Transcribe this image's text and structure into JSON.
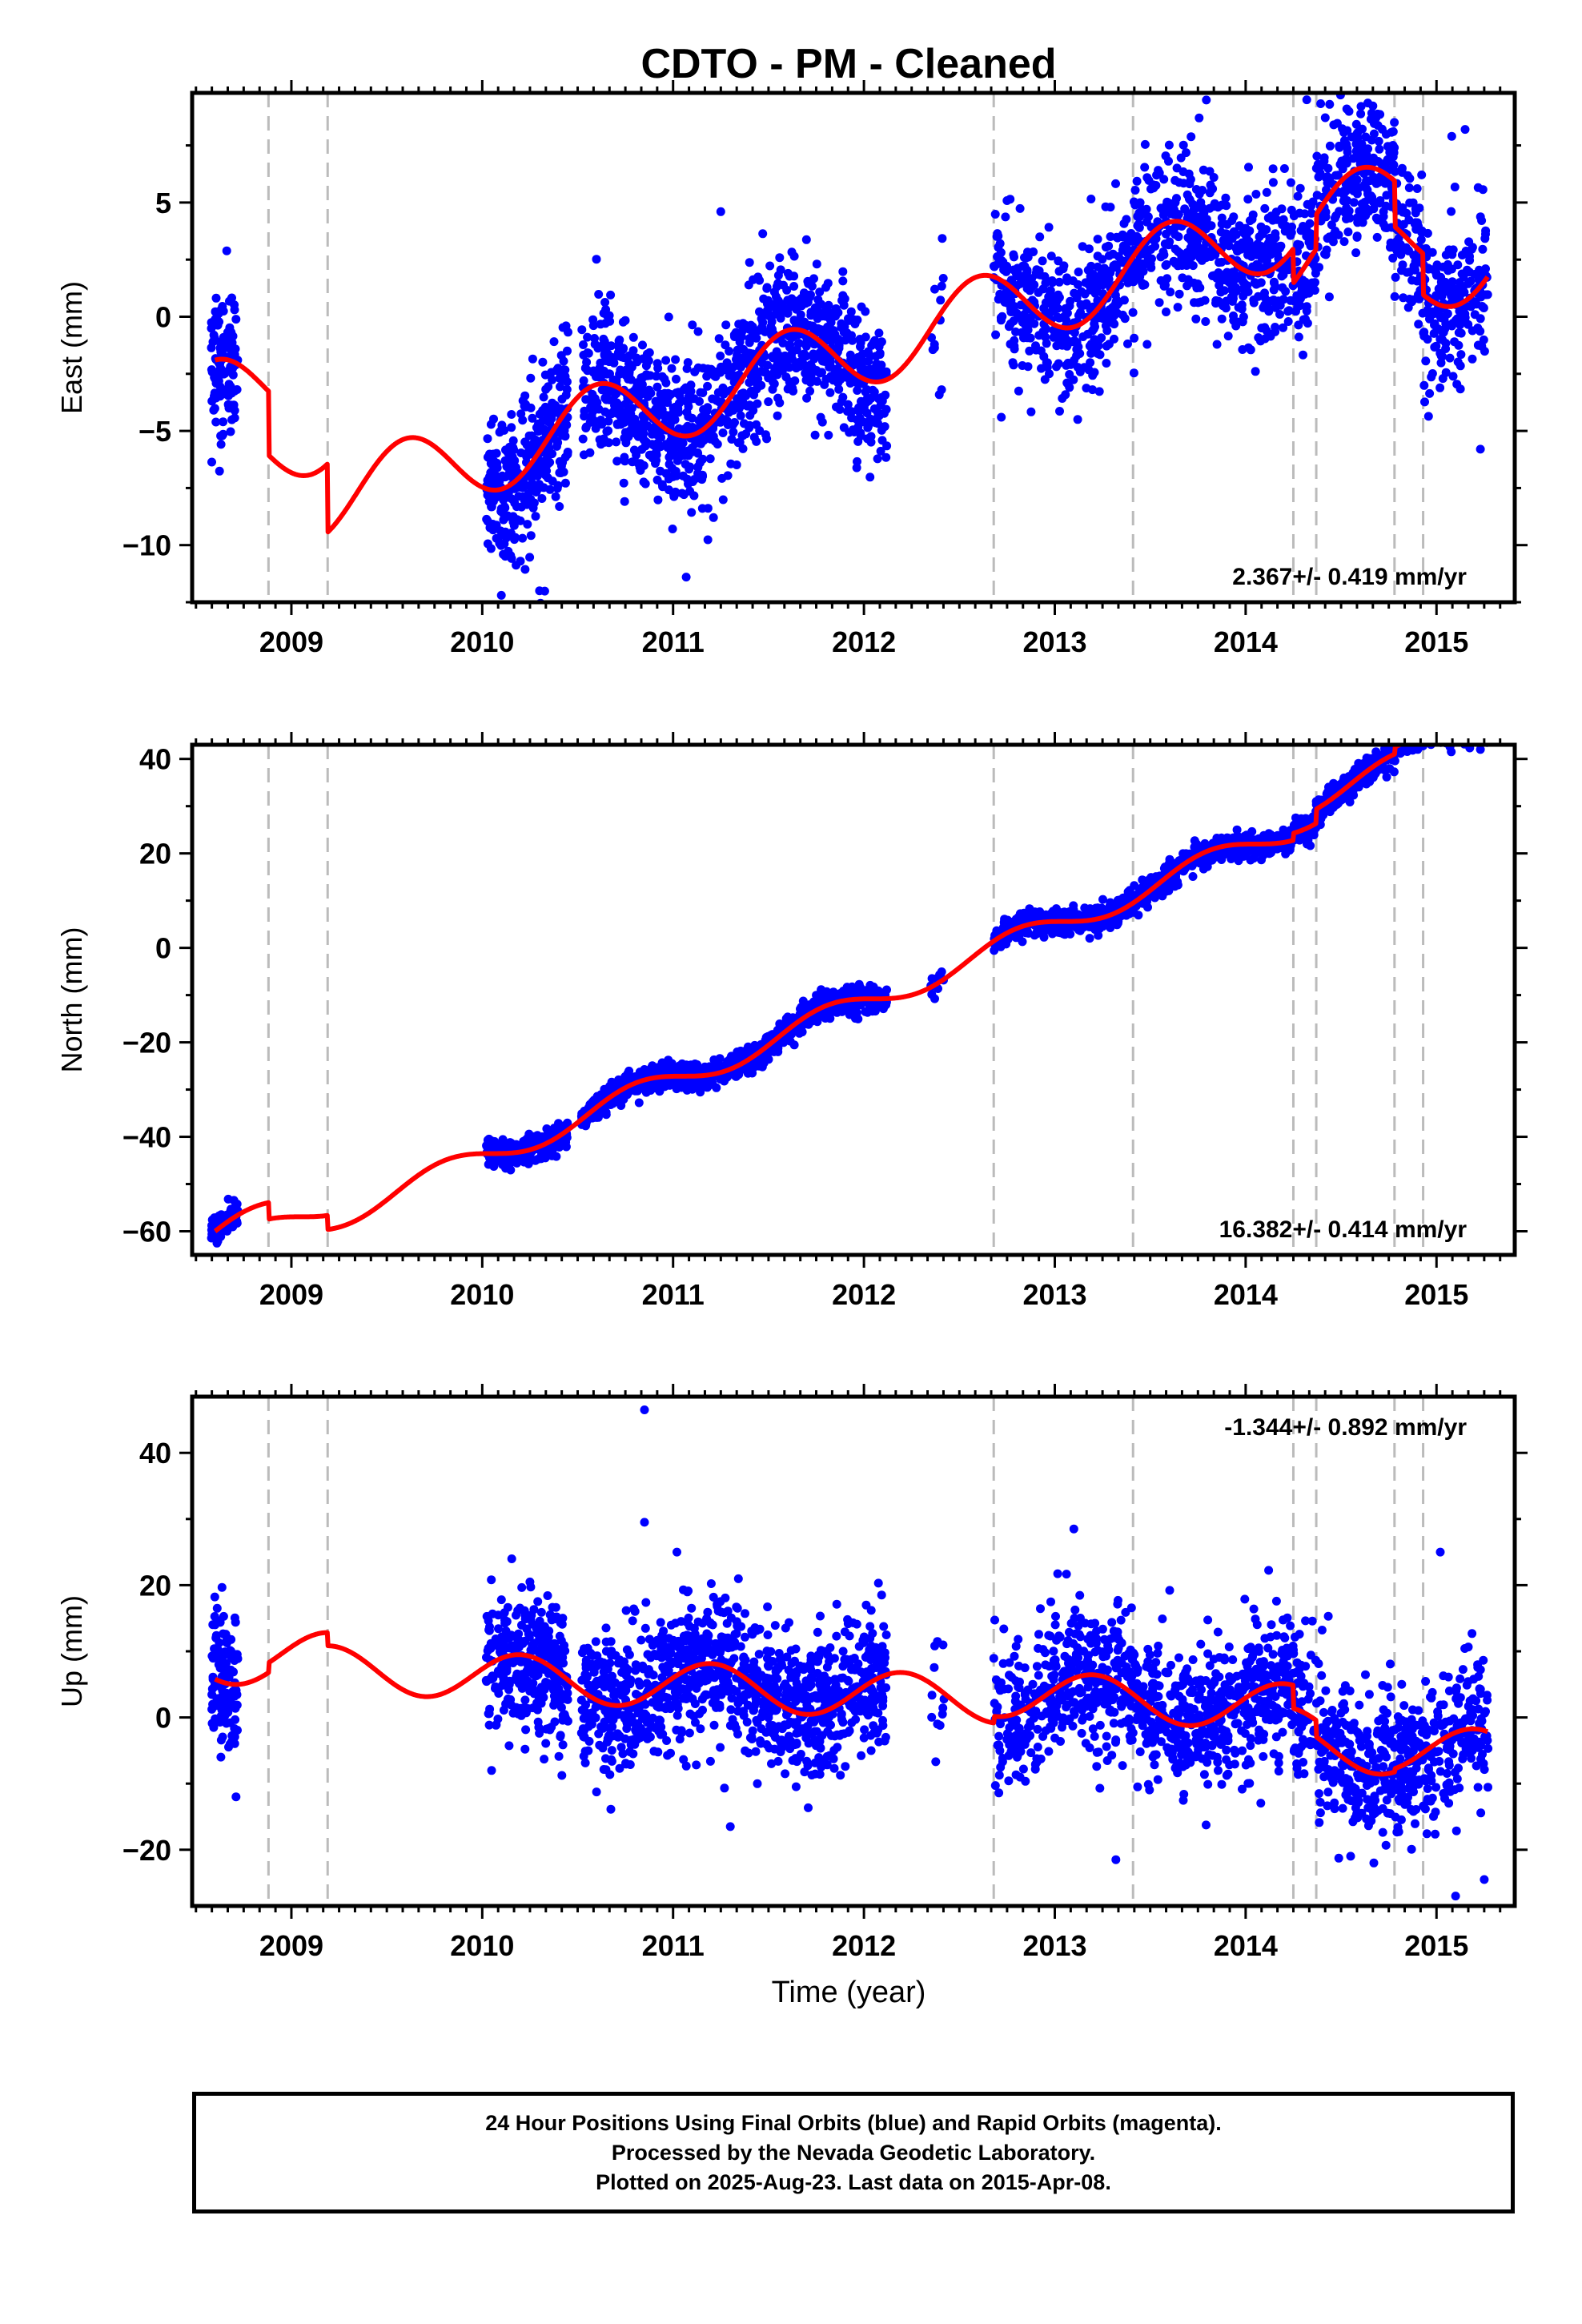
{
  "title": "CDTO  - PM - Cleaned",
  "xlabel": "Time (year)",
  "colors": {
    "points": "#0000ff",
    "model": "#ff0000",
    "breaks": "#bbbbbb",
    "axes": "#000000"
  },
  "caption": {
    "line1": "24 Hour Positions Using Final Orbits (blue) and Rapid Orbits (magenta).",
    "line2": "Processed by the Nevada Geodetic Laboratory.",
    "line3": "Plotted on 2025-Aug-23. Last data on 2015-Apr-08."
  },
  "chart_data": [
    {
      "type": "scatter",
      "component": "east",
      "ylabel": "East (mm)",
      "rate_label": "2.367+/- 0.419 mm/yr",
      "xlim": [
        2008.48,
        2015.41
      ],
      "ylim": [
        -12.5,
        9.8
      ],
      "xticks": [
        2009,
        2010,
        2011,
        2012,
        2013,
        2014,
        2015
      ],
      "yticks": [
        -10,
        -5,
        0,
        5
      ],
      "ytick_labels": [
        "−10",
        "−5",
        "0",
        "5"
      ],
      "rate": 2.367,
      "offsets": [
        [
          2008.88,
          -2.8
        ],
        [
          2009.19,
          -3.0
        ],
        [
          2014.25,
          -1.5
        ],
        [
          2014.37,
          1.5
        ],
        [
          2014.78,
          -2.0
        ],
        [
          2014.93,
          -1.8
        ]
      ],
      "seasonal": {
        "amp": 1.7,
        "phase": 2011.35
      },
      "model_anchor": [
        2008.6,
        -1.9
      ],
      "data_segments": [
        [
          2008.58,
          2008.72,
          120
        ],
        [
          2010.02,
          2010.45,
          350
        ],
        [
          2010.52,
          2012.12,
          1100
        ],
        [
          2012.35,
          2012.42,
          12
        ],
        [
          2012.68,
          2015.27,
          1500
        ]
      ],
      "scatter_sd": 1.6,
      "outliers": [
        [
          2014.32,
          9.5
        ],
        [
          2014.53,
          9.1
        ],
        [
          2014.44,
          9.3
        ],
        [
          2015.15,
          8.2
        ],
        [
          2015.08,
          7.9
        ],
        [
          2010.1,
          -12.2
        ],
        [
          2010.3,
          -12.0
        ],
        [
          2011.25,
          4.6
        ],
        [
          2015.23,
          -5.8
        ],
        [
          2013.12,
          -4.5
        ],
        [
          2012.72,
          -4.4
        ]
      ]
    },
    {
      "type": "scatter",
      "component": "north",
      "ylabel": "North (mm)",
      "rate_label": "16.382+/- 0.414 mm/yr",
      "xlim": [
        2008.48,
        2015.41
      ],
      "ylim": [
        -65,
        43
      ],
      "xticks": [
        2009,
        2010,
        2011,
        2012,
        2013,
        2014,
        2015
      ],
      "yticks": [
        -60,
        -40,
        -20,
        0,
        20,
        40
      ],
      "ytick_labels": [
        "−60",
        "−40",
        "−20",
        "0",
        "20",
        "40"
      ],
      "rate": 16.382,
      "offsets": [
        [
          2008.88,
          -3.5
        ],
        [
          2009.19,
          -3.0
        ],
        [
          2014.25,
          1.5
        ],
        [
          2014.37,
          3.0
        ],
        [
          2014.78,
          1.5
        ],
        [
          2014.93,
          1.0
        ]
      ],
      "seasonal": {
        "amp": 2.6,
        "phase": 2011.55
      },
      "model_anchor": [
        2008.6,
        -60.0
      ],
      "data_segments": [
        [
          2008.58,
          2008.72,
          120
        ],
        [
          2010.02,
          2010.45,
          350
        ],
        [
          2010.52,
          2012.12,
          1100
        ],
        [
          2012.35,
          2012.42,
          12
        ],
        [
          2012.68,
          2015.27,
          1500
        ]
      ],
      "scatter_sd": 1.3,
      "outliers": [
        [
          2015.23,
          42.0
        ],
        [
          2008.61,
          -62.5
        ]
      ]
    },
    {
      "type": "scatter",
      "component": "up",
      "ylabel": "Up (mm)",
      "rate_label": "-1.344+/- 0.892 mm/yr",
      "xlim": [
        2008.48,
        2015.41
      ],
      "ylim": [
        -28.5,
        48.5
      ],
      "xticks": [
        2009,
        2010,
        2011,
        2012,
        2013,
        2014,
        2015
      ],
      "yticks": [
        -20,
        0,
        20,
        40
      ],
      "ytick_labels": [
        "−20",
        "0",
        "20",
        "40"
      ],
      "rate": -1.344,
      "offsets": [
        [
          2008.88,
          1.5
        ],
        [
          2009.19,
          -2.0
        ],
        [
          2012.68,
          1.0
        ],
        [
          2014.25,
          -3.5
        ],
        [
          2014.37,
          -2.5
        ],
        [
          2014.78,
          0.5
        ]
      ],
      "seasonal": {
        "amp": 3.5,
        "phase": 2010.95
      },
      "model_anchor": [
        2008.6,
        5.8
      ],
      "data_segments": [
        [
          2008.58,
          2008.72,
          120
        ],
        [
          2010.02,
          2010.45,
          350
        ],
        [
          2010.52,
          2012.12,
          1100
        ],
        [
          2012.35,
          2012.42,
          12
        ],
        [
          2012.68,
          2015.27,
          1500
        ]
      ],
      "scatter_sd": 5.2,
      "outliers": [
        [
          2010.85,
          46.5
        ],
        [
          2010.85,
          29.5
        ],
        [
          2013.1,
          28.5
        ],
        [
          2011.02,
          25.0
        ],
        [
          2015.02,
          25.0
        ],
        [
          2015.1,
          -27.0
        ],
        [
          2015.25,
          -24.5
        ],
        [
          2013.32,
          -21.5
        ],
        [
          2011.3,
          -16.5
        ],
        [
          2008.71,
          -12.0
        ]
      ]
    }
  ],
  "break_epochs": [
    2008.88,
    2009.19,
    2012.68,
    2013.41,
    2014.25,
    2014.37,
    2014.78,
    2014.93
  ]
}
